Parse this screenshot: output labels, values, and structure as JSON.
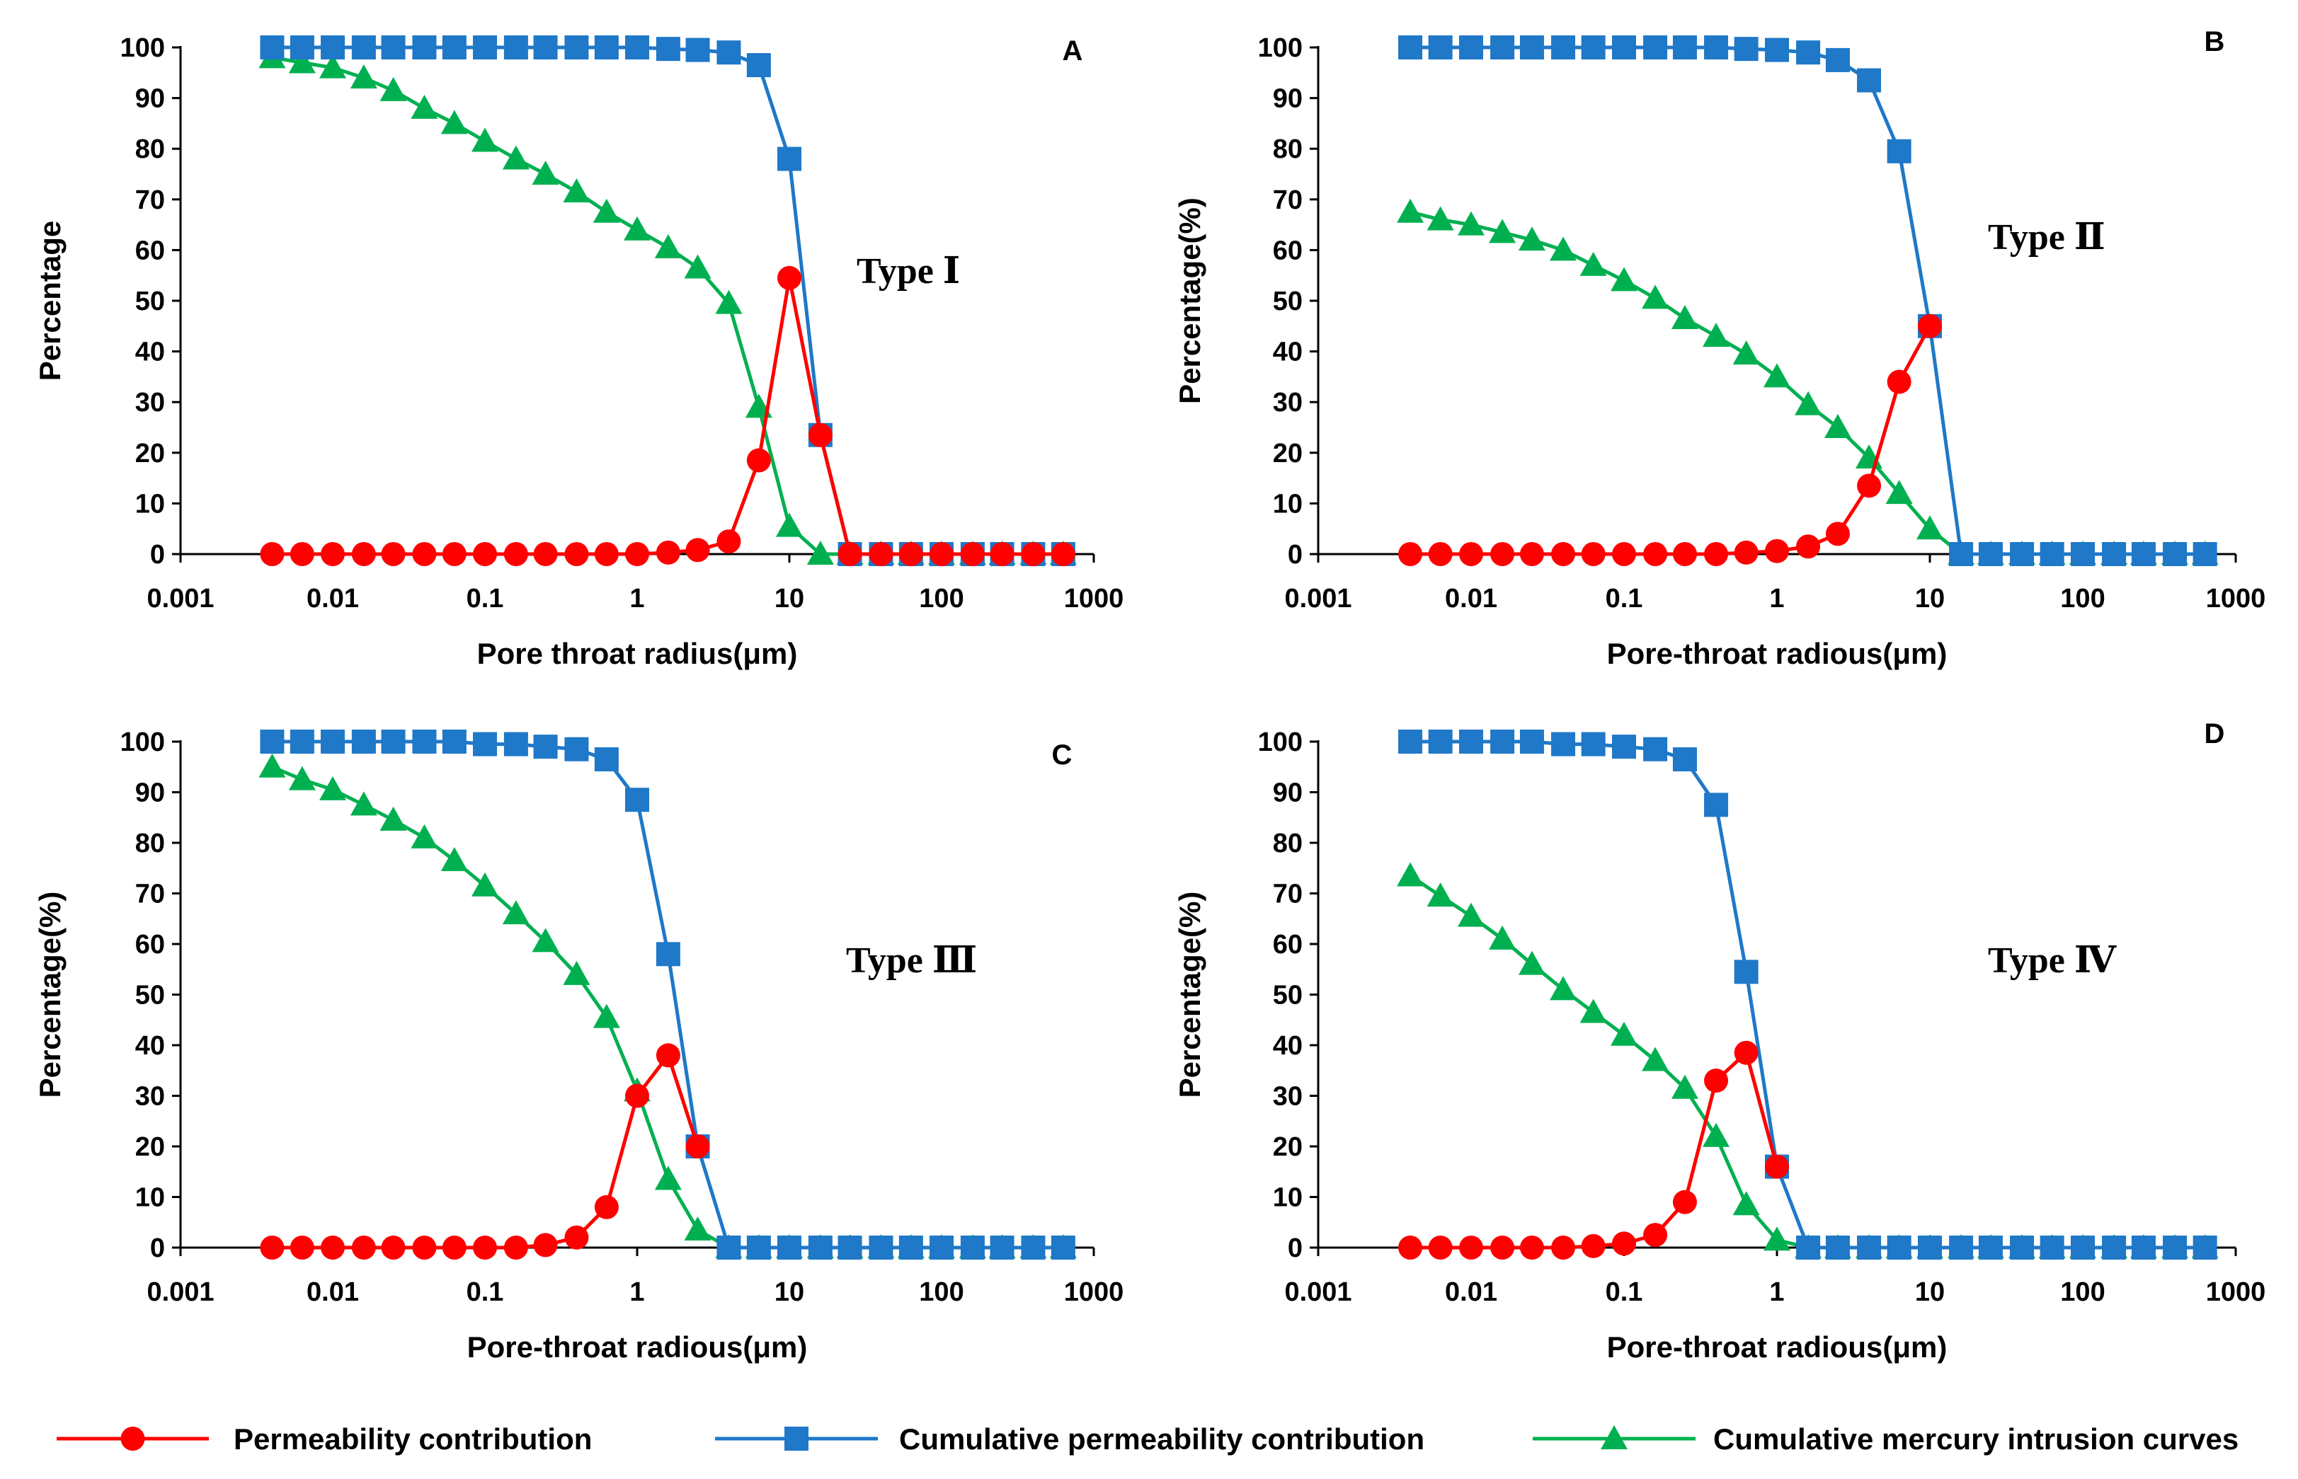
{
  "colors": {
    "permeability": "#ff0000",
    "cumulative_permeability": "#1f78c8",
    "mercury": "#00b050",
    "axis": "#000000"
  },
  "legend": {
    "items": [
      {
        "label": "Permeability contribution",
        "marker": "circle",
        "color": "#ff0000"
      },
      {
        "label": "Cumulative permeability contribution",
        "marker": "square",
        "color": "#1f78c8"
      },
      {
        "label": "Cumulative mercury intrusion curves",
        "marker": "triangle",
        "color": "#00b050"
      }
    ]
  },
  "chart_data": [
    {
      "type": "line",
      "panel": "A",
      "type_label": "Type Ⅰ",
      "xlabel": "Pore throat radius(μm)",
      "ylabel": "Percentage",
      "xscale": "log",
      "xlim": [
        0.001,
        1000
      ],
      "ylim": [
        0,
        100
      ],
      "xticks": [
        "0.001",
        "0.01",
        "0.1",
        "1",
        "10",
        "100",
        "1000"
      ],
      "yticks": [
        "0",
        "10",
        "20",
        "30",
        "40",
        "50",
        "60",
        "70",
        "80",
        "90",
        "100"
      ],
      "series": [
        {
          "name": "Permeability contribution",
          "marker": "circle",
          "x": [
            0.004,
            0.0063,
            0.01,
            0.016,
            0.025,
            0.04,
            0.063,
            0.1,
            0.16,
            0.25,
            0.4,
            0.63,
            1,
            1.6,
            2.5,
            4,
            6.3,
            10,
            16,
            25,
            40,
            63,
            100,
            160,
            250,
            400,
            630
          ],
          "y": [
            0,
            0,
            0,
            0,
            0,
            0,
            0,
            0,
            0,
            0,
            0,
            0,
            0,
            0.3,
            0.8,
            2.5,
            18.5,
            54.5,
            23.5,
            0,
            0,
            0,
            0,
            0,
            0,
            0,
            0
          ]
        },
        {
          "name": "Cumulative permeability contribution",
          "marker": "square",
          "x": [
            0.004,
            0.0063,
            0.01,
            0.016,
            0.025,
            0.04,
            0.063,
            0.1,
            0.16,
            0.25,
            0.4,
            0.63,
            1,
            1.6,
            2.5,
            4,
            6.3,
            10,
            16,
            25,
            40,
            63,
            100,
            160,
            250,
            400,
            630
          ],
          "y": [
            100,
            100,
            100,
            100,
            100,
            100,
            100,
            100,
            100,
            100,
            100,
            100,
            100,
            99.7,
            99.5,
            99,
            96.5,
            78,
            23.5,
            0,
            0,
            0,
            0,
            0,
            0,
            0,
            0
          ]
        },
        {
          "name": "Cumulative mercury intrusion curves",
          "marker": "triangle",
          "x": [
            0.004,
            0.0063,
            0.01,
            0.016,
            0.025,
            0.04,
            0.063,
            0.1,
            0.16,
            0.25,
            0.4,
            0.63,
            1,
            1.6,
            2.5,
            4,
            6.3,
            10,
            16,
            25,
            40,
            63,
            100,
            160,
            250,
            400,
            630
          ],
          "y": [
            98,
            97,
            96,
            94,
            91.5,
            88,
            85,
            81.5,
            78,
            75,
            71.5,
            67.5,
            64,
            60.5,
            56.5,
            49.5,
            29,
            5.5,
            0,
            0,
            0,
            0,
            0,
            0,
            0,
            0,
            0
          ]
        }
      ]
    },
    {
      "type": "line",
      "panel": "B",
      "type_label": "Type Ⅱ",
      "xlabel": "Pore-throat radious(μm)",
      "ylabel": "Percentage(%)",
      "xscale": "log",
      "xlim": [
        0.001,
        1000
      ],
      "ylim": [
        0,
        100
      ],
      "xticks": [
        "0.001",
        "0.01",
        "0.1",
        "1",
        "10",
        "100",
        "1000"
      ],
      "yticks": [
        "0",
        "10",
        "20",
        "30",
        "40",
        "50",
        "60",
        "70",
        "80",
        "90",
        "100"
      ],
      "series": [
        {
          "name": "Permeability contribution",
          "marker": "circle",
          "x": [
            0.004,
            0.0063,
            0.01,
            0.016,
            0.025,
            0.04,
            0.063,
            0.1,
            0.16,
            0.25,
            0.4,
            0.63,
            1,
            1.6,
            2.5,
            4,
            6.3,
            10
          ],
          "y": [
            0,
            0,
            0,
            0,
            0,
            0,
            0,
            0,
            0,
            0,
            0,
            0.3,
            0.6,
            1.5,
            4,
            13.5,
            34,
            45
          ]
        },
        {
          "name": "Cumulative permeability contribution",
          "marker": "square",
          "x": [
            0.004,
            0.0063,
            0.01,
            0.016,
            0.025,
            0.04,
            0.063,
            0.1,
            0.16,
            0.25,
            0.4,
            0.63,
            1,
            1.6,
            2.5,
            4,
            6.3,
            10,
            16,
            25,
            40,
            63,
            100,
            160,
            250,
            400,
            630
          ],
          "y": [
            100,
            100,
            100,
            100,
            100,
            100,
            100,
            100,
            100,
            100,
            100,
            99.7,
            99.5,
            99,
            97.5,
            93.5,
            79.5,
            45,
            0,
            0,
            0,
            0,
            0,
            0,
            0,
            0,
            0
          ]
        },
        {
          "name": "Cumulative mercury intrusion curves",
          "marker": "triangle",
          "x": [
            0.004,
            0.0063,
            0.01,
            0.016,
            0.025,
            0.04,
            0.063,
            0.1,
            0.16,
            0.25,
            0.4,
            0.63,
            1,
            1.6,
            2.5,
            4,
            6.3,
            10,
            16,
            25,
            40,
            63,
            100,
            160,
            250,
            400,
            630
          ],
          "y": [
            67.5,
            66,
            65,
            63.5,
            62,
            60,
            57,
            54,
            50.5,
            46.5,
            43,
            39.5,
            35,
            29.5,
            25,
            19,
            12,
            5,
            0,
            0,
            0,
            0,
            0,
            0,
            0,
            0,
            0
          ]
        }
      ]
    },
    {
      "type": "line",
      "panel": "C",
      "type_label": "Type Ⅲ",
      "xlabel": "Pore-throat radious(μm)",
      "ylabel": "Percentage(%)",
      "xscale": "log",
      "xlim": [
        0.001,
        1000
      ],
      "ylim": [
        0,
        100
      ],
      "xticks": [
        "0.001",
        "0.01",
        "0.1",
        "1",
        "10",
        "100",
        "1000"
      ],
      "yticks": [
        "0",
        "10",
        "20",
        "30",
        "40",
        "50",
        "60",
        "70",
        "80",
        "90",
        "100"
      ],
      "series": [
        {
          "name": "Permeability contribution",
          "marker": "circle",
          "x": [
            0.004,
            0.0063,
            0.01,
            0.016,
            0.025,
            0.04,
            0.063,
            0.1,
            0.16,
            0.25,
            0.4,
            0.63,
            1,
            1.6,
            2.5
          ],
          "y": [
            0,
            0,
            0,
            0,
            0,
            0,
            0,
            0,
            0,
            0.5,
            2,
            8,
            30,
            38,
            20
          ]
        },
        {
          "name": "Cumulative permeability contribution",
          "marker": "square",
          "x": [
            0.004,
            0.0063,
            0.01,
            0.016,
            0.025,
            0.04,
            0.063,
            0.1,
            0.16,
            0.25,
            0.4,
            0.63,
            1,
            1.6,
            2.5,
            4,
            6.3,
            10,
            16,
            25,
            40,
            63,
            100,
            160,
            250,
            400,
            630
          ],
          "y": [
            100,
            100,
            100,
            100,
            100,
            100,
            100,
            99.5,
            99.5,
            99,
            98.5,
            96.5,
            88.5,
            58,
            20,
            0,
            0,
            0,
            0,
            0,
            0,
            0,
            0,
            0,
            0,
            0,
            0
          ]
        },
        {
          "name": "Cumulative mercury intrusion curves",
          "marker": "triangle",
          "x": [
            0.004,
            0.0063,
            0.01,
            0.016,
            0.025,
            0.04,
            0.063,
            0.1,
            0.16,
            0.25,
            0.4,
            0.63,
            1,
            1.6,
            2.5,
            4,
            6.3,
            10,
            16,
            25,
            40,
            63,
            100,
            160,
            250,
            400,
            630
          ],
          "y": [
            95,
            92.5,
            90.5,
            87.5,
            84.5,
            81,
            76.5,
            71.5,
            66,
            60.5,
            54,
            45.5,
            31,
            13.5,
            3.5,
            0,
            0,
            0,
            0,
            0,
            0,
            0,
            0,
            0,
            0,
            0,
            0
          ]
        }
      ]
    },
    {
      "type": "line",
      "panel": "D",
      "type_label": "Type Ⅳ",
      "xlabel": "Pore-throat radious(μm)",
      "ylabel": "Percentage(%)",
      "xscale": "log",
      "xlim": [
        0.001,
        1000
      ],
      "ylim": [
        0,
        100
      ],
      "xticks": [
        "0.001",
        "0.01",
        "0.1",
        "1",
        "10",
        "100",
        "1000"
      ],
      "yticks": [
        "0",
        "10",
        "20",
        "30",
        "40",
        "50",
        "60",
        "70",
        "80",
        "90",
        "100"
      ],
      "series": [
        {
          "name": "Permeability contribution",
          "marker": "circle",
          "x": [
            0.004,
            0.0063,
            0.01,
            0.016,
            0.025,
            0.04,
            0.063,
            0.1,
            0.16,
            0.25,
            0.4,
            0.63,
            1
          ],
          "y": [
            0,
            0,
            0,
            0,
            0,
            0,
            0.3,
            0.8,
            2.5,
            9,
            33,
            38.5,
            16
          ]
        },
        {
          "name": "Cumulative permeability contribution",
          "marker": "square",
          "x": [
            0.004,
            0.0063,
            0.01,
            0.016,
            0.025,
            0.04,
            0.063,
            0.1,
            0.16,
            0.25,
            0.4,
            0.63,
            1,
            1.6,
            2.5,
            4,
            6.3,
            10,
            16,
            25,
            40,
            63,
            100,
            160,
            250,
            400,
            630
          ],
          "y": [
            100,
            100,
            100,
            100,
            100,
            99.5,
            99.5,
            99,
            98.5,
            96.5,
            87.5,
            54.5,
            16,
            0,
            0,
            0,
            0,
            0,
            0,
            0,
            0,
            0,
            0,
            0,
            0,
            0,
            0
          ]
        },
        {
          "name": "Cumulative mercury intrusion curves",
          "marker": "triangle",
          "x": [
            0.004,
            0.0063,
            0.01,
            0.016,
            0.025,
            0.04,
            0.063,
            0.1,
            0.16,
            0.25,
            0.4,
            0.63,
            1,
            1.6,
            2.5,
            4,
            6.3,
            10,
            16,
            25,
            40,
            63,
            100,
            160,
            250,
            400,
            630
          ],
          "y": [
            73.5,
            69.5,
            65.5,
            61,
            56,
            51,
            46.5,
            42,
            37,
            31.5,
            22,
            8.5,
            1.5,
            0,
            0,
            0,
            0,
            0,
            0,
            0,
            0,
            0,
            0,
            0,
            0,
            0,
            0
          ]
        }
      ]
    }
  ]
}
